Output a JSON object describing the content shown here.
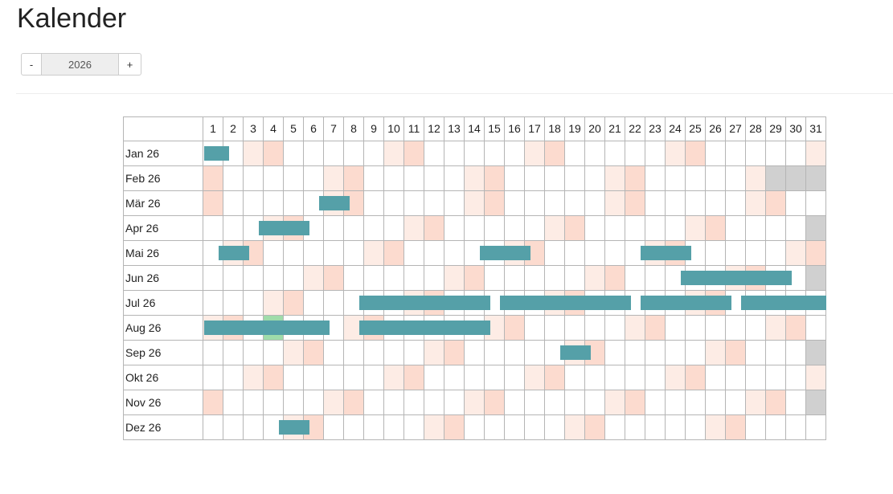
{
  "header": {
    "title": "Kalender"
  },
  "year_control": {
    "decrement": "-",
    "year": "2026",
    "increment": "+"
  },
  "calendar": {
    "days": [
      "1",
      "2",
      "3",
      "4",
      "5",
      "6",
      "7",
      "8",
      "9",
      "10",
      "11",
      "12",
      "13",
      "14",
      "15",
      "16",
      "17",
      "18",
      "19",
      "20",
      "21",
      "22",
      "23",
      "24",
      "25",
      "26",
      "27",
      "28",
      "29",
      "30",
      "31"
    ],
    "months": [
      "Jan 26",
      "Feb 26",
      "Mär 26",
      "Apr 26",
      "Mai 26",
      "Jun 26",
      "Jul 26",
      "Aug 26",
      "Sep 26",
      "Okt 26",
      "Nov 26",
      "Dez 26"
    ]
  }
}
